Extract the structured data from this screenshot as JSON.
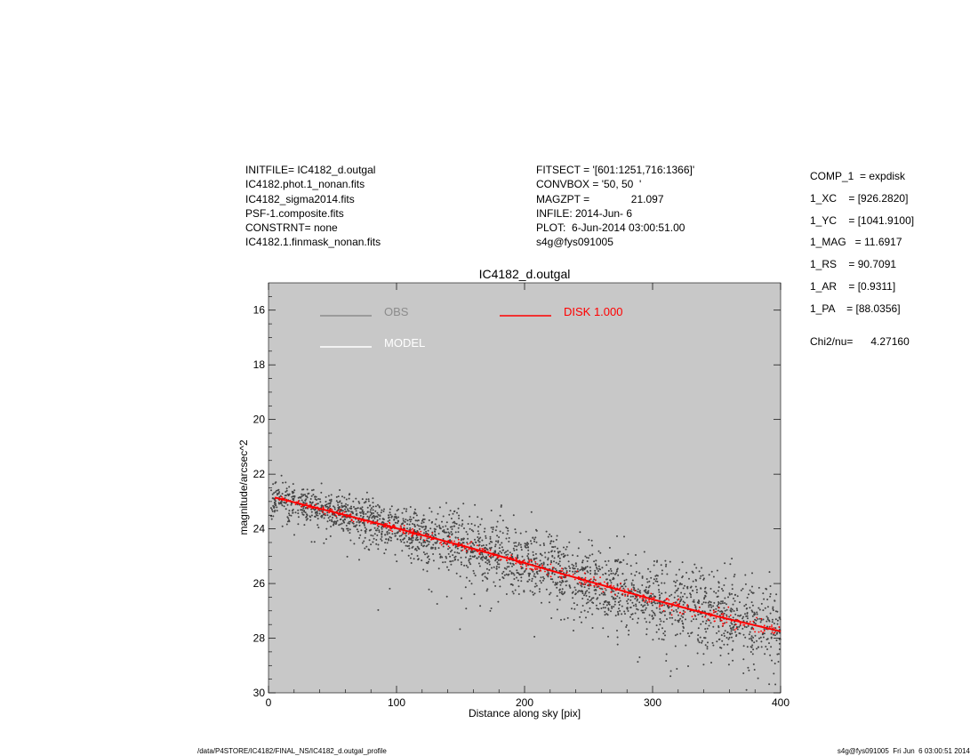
{
  "header": {
    "left": [
      "INITFILE= IC4182_d.outgal",
      "IC4182.phot.1_nonan.fits",
      "IC4182_sigma2014.fits",
      "PSF-1.composite.fits",
      "CONSTRNT= none",
      "IC4182.1.finmask_nonan.fits"
    ],
    "middle": [
      "FITSECT = '[601:1251,716:1366]'",
      "CONVBOX = '50, 50  '",
      "MAGZPT =              21.097",
      "INFILE: 2014-Jun- 6",
      "PLOT:  6-Jun-2014 03:00:51.00",
      "s4g@fys091005"
    ]
  },
  "params": {
    "comp": "COMP_1  = expdisk",
    "lines": [
      "1_XC    = [926.2820]",
      "1_YC    = [1041.9100]",
      "1_MAG   = 11.6917",
      "1_RS    = 90.7091",
      "1_AR    = [0.9311]",
      "1_PA    = [88.0356]"
    ],
    "chi": "Chi2/nu=      4.27160"
  },
  "footer": {
    "left": "/data/P4STORE/IC4182/FINAL_NS/IC4182_d.outgal_profile",
    "right": "s4g@fys091005  Fri Jun  6 03:00:51 2014"
  },
  "colors": {
    "plot_bg": "#c8c8c8",
    "obs": "#444444",
    "obs_legend": "#8c8c8c",
    "model": "#ffffff",
    "disk": "#ff0000"
  },
  "chart_data": {
    "type": "scatter",
    "title": "IC4182_d.outgal",
    "xlabel": "Distance along sky [pix]",
    "ylabel": "magnitude/arcsec^2",
    "xlim": [
      0,
      400
    ],
    "ylim": [
      30,
      15
    ],
    "y_inverted": true,
    "xticks": [
      0,
      100,
      200,
      300,
      400
    ],
    "yticks": [
      16,
      18,
      20,
      22,
      24,
      26,
      28,
      30
    ],
    "legend": [
      {
        "name": "OBS",
        "color": "#8c8c8c"
      },
      {
        "name": "DISK  1.000",
        "color": "#ff0000"
      },
      {
        "name": "MODEL",
        "color": "#ffffff"
      }
    ],
    "series": [
      {
        "name": "OBS",
        "kind": "scatter",
        "trend_x": [
          0,
          50,
          100,
          150,
          200,
          250,
          300,
          350,
          400
        ],
        "trend_y": [
          22.8,
          23.35,
          23.95,
          24.55,
          25.2,
          25.85,
          26.5,
          27.1,
          27.7
        ],
        "spread_y": [
          0.3,
          0.35,
          0.45,
          0.55,
          0.6,
          0.65,
          0.7,
          0.75,
          0.8
        ]
      },
      {
        "name": "DISK  1.000",
        "kind": "line",
        "x": [
          5,
          50,
          100,
          150,
          200,
          250,
          300,
          350,
          400
        ],
        "y": [
          22.85,
          23.38,
          23.98,
          24.6,
          25.25,
          25.92,
          26.58,
          27.2,
          27.75
        ]
      }
    ]
  }
}
